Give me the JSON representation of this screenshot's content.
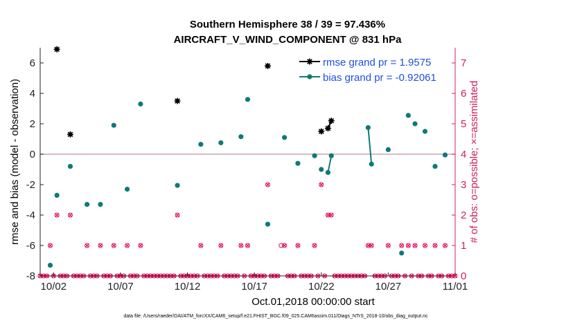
{
  "chart_data": {
    "type": "scatter",
    "title": "Southern Hemisphere 38 / 39 = 97.436%",
    "subtitle": "AIRCRAFT_V_WIND_COMPONENT @ 831 hPa",
    "xlabel": "Oct.01,2018 00:00:00 start",
    "ylabel": "rmse and bias (model - observation)",
    "y2label": "# of obs: o=possible; ×=assimilated",
    "footnote": "data file: /Users/raeder/DAI/ATM_forcXX/CAM6_setup/f.e21.FHIST_BGC.f09_025.CAM6assim.011/Diags_NTrS_2018-10/obs_diag_output.nc",
    "xlim": [
      0.5,
      31.5
    ],
    "ylim": [
      -8,
      7
    ],
    "y2lim": [
      0,
      7.5
    ],
    "x_ticks": [
      1.5,
      6.5,
      11.5,
      16.5,
      21.5,
      26.5,
      31.5
    ],
    "x_tick_labels": [
      "10/02",
      "10/07",
      "10/12",
      "10/17",
      "10/22",
      "10/27",
      "11/01"
    ],
    "y_ticks": [
      -8,
      -6,
      -4,
      -2,
      0,
      2,
      4,
      6
    ],
    "y_tick_labels": [
      "-8",
      "-6",
      "-4",
      "-2",
      "0",
      "2",
      "4",
      "6"
    ],
    "y2_ticks": [
      0,
      1,
      2,
      3,
      4,
      5,
      6,
      7
    ],
    "y2_tick_labels": [
      "0",
      "1",
      "2",
      "3",
      "4",
      "5",
      "6",
      "7"
    ],
    "zero_line": 0,
    "colors": {
      "rmse": "#000000",
      "bias": "#0d7a78",
      "obs": "#e0105a",
      "axis_right": "#cc1f5e",
      "zero": "#c9a6b0",
      "legend_text": "#1f4fe0"
    },
    "series": [
      {
        "name": "rmse grand pr = 1.9575",
        "marker": "star",
        "color": "#000000",
        "points": [
          [
            1.75,
            6.9
          ],
          [
            2.75,
            1.3
          ],
          [
            10.75,
            3.5
          ],
          [
            17.5,
            5.8
          ],
          [
            21.5,
            1.5
          ],
          [
            22.0,
            1.7
          ],
          [
            22.25,
            2.2
          ]
        ],
        "segments": [
          [
            [
              22.0,
              1.7
            ],
            [
              22.25,
              2.2
            ]
          ]
        ]
      },
      {
        "name": "bias grand pr = -0.92061",
        "marker": "dot",
        "color": "#0d7a78",
        "points": [
          [
            1.25,
            -7.3
          ],
          [
            1.75,
            -2.7
          ],
          [
            2.75,
            -0.8
          ],
          [
            4.0,
            -3.3
          ],
          [
            5.0,
            -3.3
          ],
          [
            6.0,
            1.9
          ],
          [
            7.0,
            -2.3
          ],
          [
            8.0,
            3.3
          ],
          [
            10.75,
            -2.05
          ],
          [
            12.5,
            0.65
          ],
          [
            14.0,
            0.75
          ],
          [
            15.5,
            1.15
          ],
          [
            16.0,
            3.6
          ],
          [
            17.5,
            -4.6
          ],
          [
            18.75,
            1.1
          ],
          [
            19.75,
            -0.6
          ],
          [
            21.0,
            -0.1
          ],
          [
            21.5,
            -1.0
          ],
          [
            22.0,
            -1.2
          ],
          [
            22.25,
            -0.1
          ],
          [
            25.0,
            1.75
          ],
          [
            25.25,
            -0.65
          ],
          [
            26.5,
            0.3
          ],
          [
            27.5,
            -6.5
          ],
          [
            28.0,
            2.55
          ],
          [
            28.5,
            2.0
          ],
          [
            29.25,
            1.5
          ],
          [
            30.0,
            -0.8
          ],
          [
            30.75,
            -0.05
          ]
        ],
        "segments": [
          [
            [
              22.0,
              -1.2
            ],
            [
              22.25,
              -0.1
            ]
          ],
          [
            [
              25.0,
              1.75
            ],
            [
              25.25,
              -0.65
            ]
          ]
        ]
      }
    ],
    "obs_counts": {
      "possible": [
        [
          1.25,
          1
        ],
        [
          1.75,
          2
        ],
        [
          2.75,
          2
        ],
        [
          4.0,
          1
        ],
        [
          5.0,
          1
        ],
        [
          6.0,
          1
        ],
        [
          7.0,
          1
        ],
        [
          8.0,
          1
        ],
        [
          10.75,
          2
        ],
        [
          12.5,
          1
        ],
        [
          14.0,
          1
        ],
        [
          15.5,
          1
        ],
        [
          16.0,
          1
        ],
        [
          17.5,
          3
        ],
        [
          18.5,
          1
        ],
        [
          18.75,
          1
        ],
        [
          19.75,
          1
        ],
        [
          21.0,
          1
        ],
        [
          21.5,
          3
        ],
        [
          22.0,
          2
        ],
        [
          22.25,
          2
        ],
        [
          25.0,
          1
        ],
        [
          25.25,
          1
        ],
        [
          26.5,
          1
        ],
        [
          27.5,
          1
        ],
        [
          28.0,
          1
        ],
        [
          28.5,
          1
        ],
        [
          29.25,
          1
        ],
        [
          30.0,
          1
        ],
        [
          30.75,
          1
        ]
      ],
      "assimilated": [
        [
          1.25,
          1
        ],
        [
          1.75,
          2
        ],
        [
          2.75,
          2
        ],
        [
          4.0,
          1
        ],
        [
          5.0,
          1
        ],
        [
          6.0,
          1
        ],
        [
          7.0,
          1
        ],
        [
          8.0,
          1
        ],
        [
          10.75,
          2
        ],
        [
          12.5,
          1
        ],
        [
          14.0,
          1
        ],
        [
          15.5,
          1
        ],
        [
          16.0,
          1
        ],
        [
          17.5,
          3
        ],
        [
          18.75,
          1
        ],
        [
          19.75,
          1
        ],
        [
          21.0,
          1
        ],
        [
          21.5,
          3
        ],
        [
          22.0,
          2
        ],
        [
          22.25,
          2
        ],
        [
          25.0,
          1
        ],
        [
          25.25,
          1
        ],
        [
          26.5,
          1
        ],
        [
          27.5,
          1
        ],
        [
          28.0,
          1
        ],
        [
          28.5,
          1
        ],
        [
          29.25,
          1
        ],
        [
          30.0,
          1
        ],
        [
          30.75,
          1
        ]
      ],
      "zero_start": 0.5,
      "zero_end": 31.5,
      "zero_step": 0.25
    },
    "legend": {
      "location": "top-right"
    }
  }
}
